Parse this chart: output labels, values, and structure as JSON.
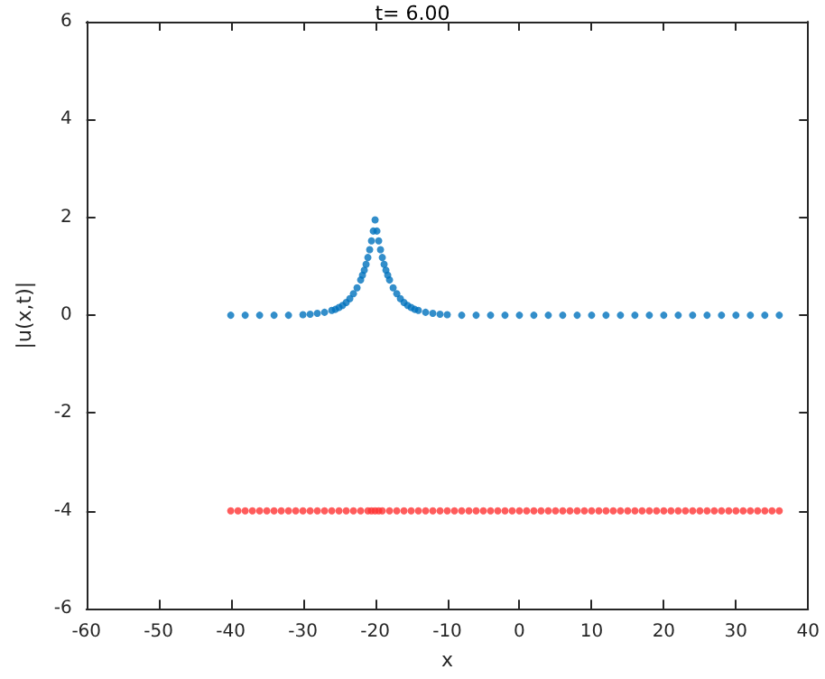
{
  "chart_data": {
    "type": "scatter",
    "title": "t= 6.00",
    "xlabel": "x",
    "ylabel": "|u(x,t)|",
    "marker": "circle",
    "grid": false,
    "xlim": [
      -60,
      40
    ],
    "xticks": [
      -60,
      -50,
      -40,
      -30,
      -20,
      -10,
      0,
      10,
      20,
      30,
      40
    ],
    "ylim": [
      -6,
      6
    ],
    "yticks": [
      -6,
      -4,
      -2,
      0,
      2,
      4,
      6
    ],
    "series": [
      {
        "color": "#0072bd",
        "x": [
          -40,
          -38,
          -36,
          -34,
          -32,
          -30,
          -29,
          -28,
          -27,
          -26,
          -25.5,
          -25,
          -24.5,
          -24,
          -23.5,
          -23,
          -22.5,
          -22,
          -21.75,
          -21.5,
          -21.25,
          -21,
          -20.75,
          -20.5,
          -20.25,
          -20,
          -19.75,
          -19.5,
          -19.25,
          -19,
          -18.75,
          -18.5,
          -18.25,
          -18,
          -17.5,
          -17,
          -16.5,
          -16,
          -15.5,
          -15,
          -14.5,
          -14,
          -13,
          -12,
          -11,
          -10,
          -8,
          -6,
          -4,
          -2,
          0,
          2,
          4,
          6,
          8,
          10,
          12,
          14,
          16,
          18,
          20,
          22,
          24,
          26,
          28,
          30,
          32,
          34,
          36
        ],
        "values": [
          0,
          0,
          0,
          0,
          0,
          0.01,
          0.02,
          0.04,
          0.06,
          0.1,
          0.12,
          0.16,
          0.2,
          0.26,
          0.34,
          0.44,
          0.56,
          0.72,
          0.82,
          0.92,
          1.04,
          1.18,
          1.34,
          1.52,
          1.72,
          1.95,
          1.72,
          1.52,
          1.34,
          1.18,
          1.04,
          0.92,
          0.82,
          0.72,
          0.56,
          0.44,
          0.34,
          0.26,
          0.2,
          0.16,
          0.12,
          0.1,
          0.06,
          0.04,
          0.02,
          0.01,
          0,
          0,
          0,
          0,
          0,
          0,
          0,
          0,
          0,
          0,
          0,
          0,
          0,
          0,
          0,
          0,
          0,
          0,
          0,
          0,
          0,
          0,
          0
        ]
      },
      {
        "color": "#ff3333",
        "x": [
          -40,
          -39,
          -38,
          -37,
          -36,
          -35,
          -34,
          -33,
          -32,
          -31,
          -30,
          -29,
          -28,
          -27,
          -26,
          -25,
          -24,
          -23,
          -22,
          -21,
          -20.5,
          -20,
          -19.5,
          -19,
          -18,
          -17,
          -16,
          -15,
          -14,
          -13,
          -12,
          -11,
          -10,
          -9,
          -8,
          -7,
          -6,
          -5,
          -4,
          -3,
          -2,
          -1,
          0,
          1,
          2,
          3,
          4,
          5,
          6,
          7,
          8,
          9,
          10,
          11,
          12,
          13,
          14,
          15,
          16,
          17,
          18,
          19,
          20,
          21,
          22,
          23,
          24,
          25,
          26,
          27,
          28,
          29,
          30,
          31,
          32,
          33,
          34,
          35,
          36
        ],
        "values": [
          -4,
          -4,
          -4,
          -4,
          -4,
          -4,
          -4,
          -4,
          -4,
          -4,
          -4,
          -4,
          -4,
          -4,
          -4,
          -4,
          -4,
          -4,
          -4,
          -4,
          -4,
          -4,
          -4,
          -4,
          -4,
          -4,
          -4,
          -4,
          -4,
          -4,
          -4,
          -4,
          -4,
          -4,
          -4,
          -4,
          -4,
          -4,
          -4,
          -4,
          -4,
          -4,
          -4,
          -4,
          -4,
          -4,
          -4,
          -4,
          -4,
          -4,
          -4,
          -4,
          -4,
          -4,
          -4,
          -4,
          -4,
          -4,
          -4,
          -4,
          -4,
          -4,
          -4,
          -4,
          -4,
          -4,
          -4,
          -4,
          -4,
          -4,
          -4,
          -4,
          -4,
          -4,
          -4,
          -4,
          -4,
          -4,
          -4
        ]
      }
    ]
  }
}
